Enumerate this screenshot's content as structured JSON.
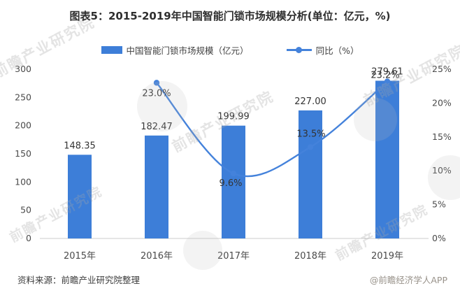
{
  "title": "图表5：2015-2019年中国智能门锁市场规模分析(单位：亿元，%)",
  "legend": [
    {
      "label": "中国智能门锁市场规模（亿元）",
      "type": "bar"
    },
    {
      "label": "同比（%）",
      "type": "line"
    }
  ],
  "colors": {
    "bar": "#3D7ED8",
    "line": "#4482DB",
    "axis_line": "#d8d8d8"
  },
  "chart_data": {
    "type": "bar+line-combo",
    "categories": [
      "2015年",
      "2016年",
      "2017年",
      "2018年",
      "2019年"
    ],
    "series": [
      {
        "name": "中国智能门锁市场规模（亿元）",
        "type": "bar",
        "axis": "left",
        "values": [
          148.35,
          182.47,
          199.99,
          227.0,
          279.61
        ],
        "labels": [
          "148.35",
          "182.47",
          "199.99",
          "227.00",
          "279.61"
        ]
      },
      {
        "name": "同比（%）",
        "type": "line",
        "axis": "right",
        "values": [
          null,
          23.0,
          9.6,
          13.5,
          23.2
        ],
        "labels": [
          "",
          "23.0%",
          "9.6%",
          "13.5%",
          "23.2%"
        ]
      }
    ],
    "left_axis": {
      "min": 0,
      "max": 300,
      "step": 50,
      "ticks": [
        "0",
        "50",
        "100",
        "150",
        "200",
        "250",
        "300"
      ]
    },
    "right_axis": {
      "min": 0,
      "max": 25,
      "step": 5,
      "ticks": [
        "0%",
        "5%",
        "10%",
        "15%",
        "20%",
        "25%"
      ]
    },
    "grid": false,
    "legend_position": "top",
    "line_smooth": true
  },
  "footer": {
    "source": "资料来源：前瞻产业研究院整理",
    "credit": "@前瞻经济学人APP"
  },
  "watermark": {
    "text": "前瞻产业研究院"
  }
}
